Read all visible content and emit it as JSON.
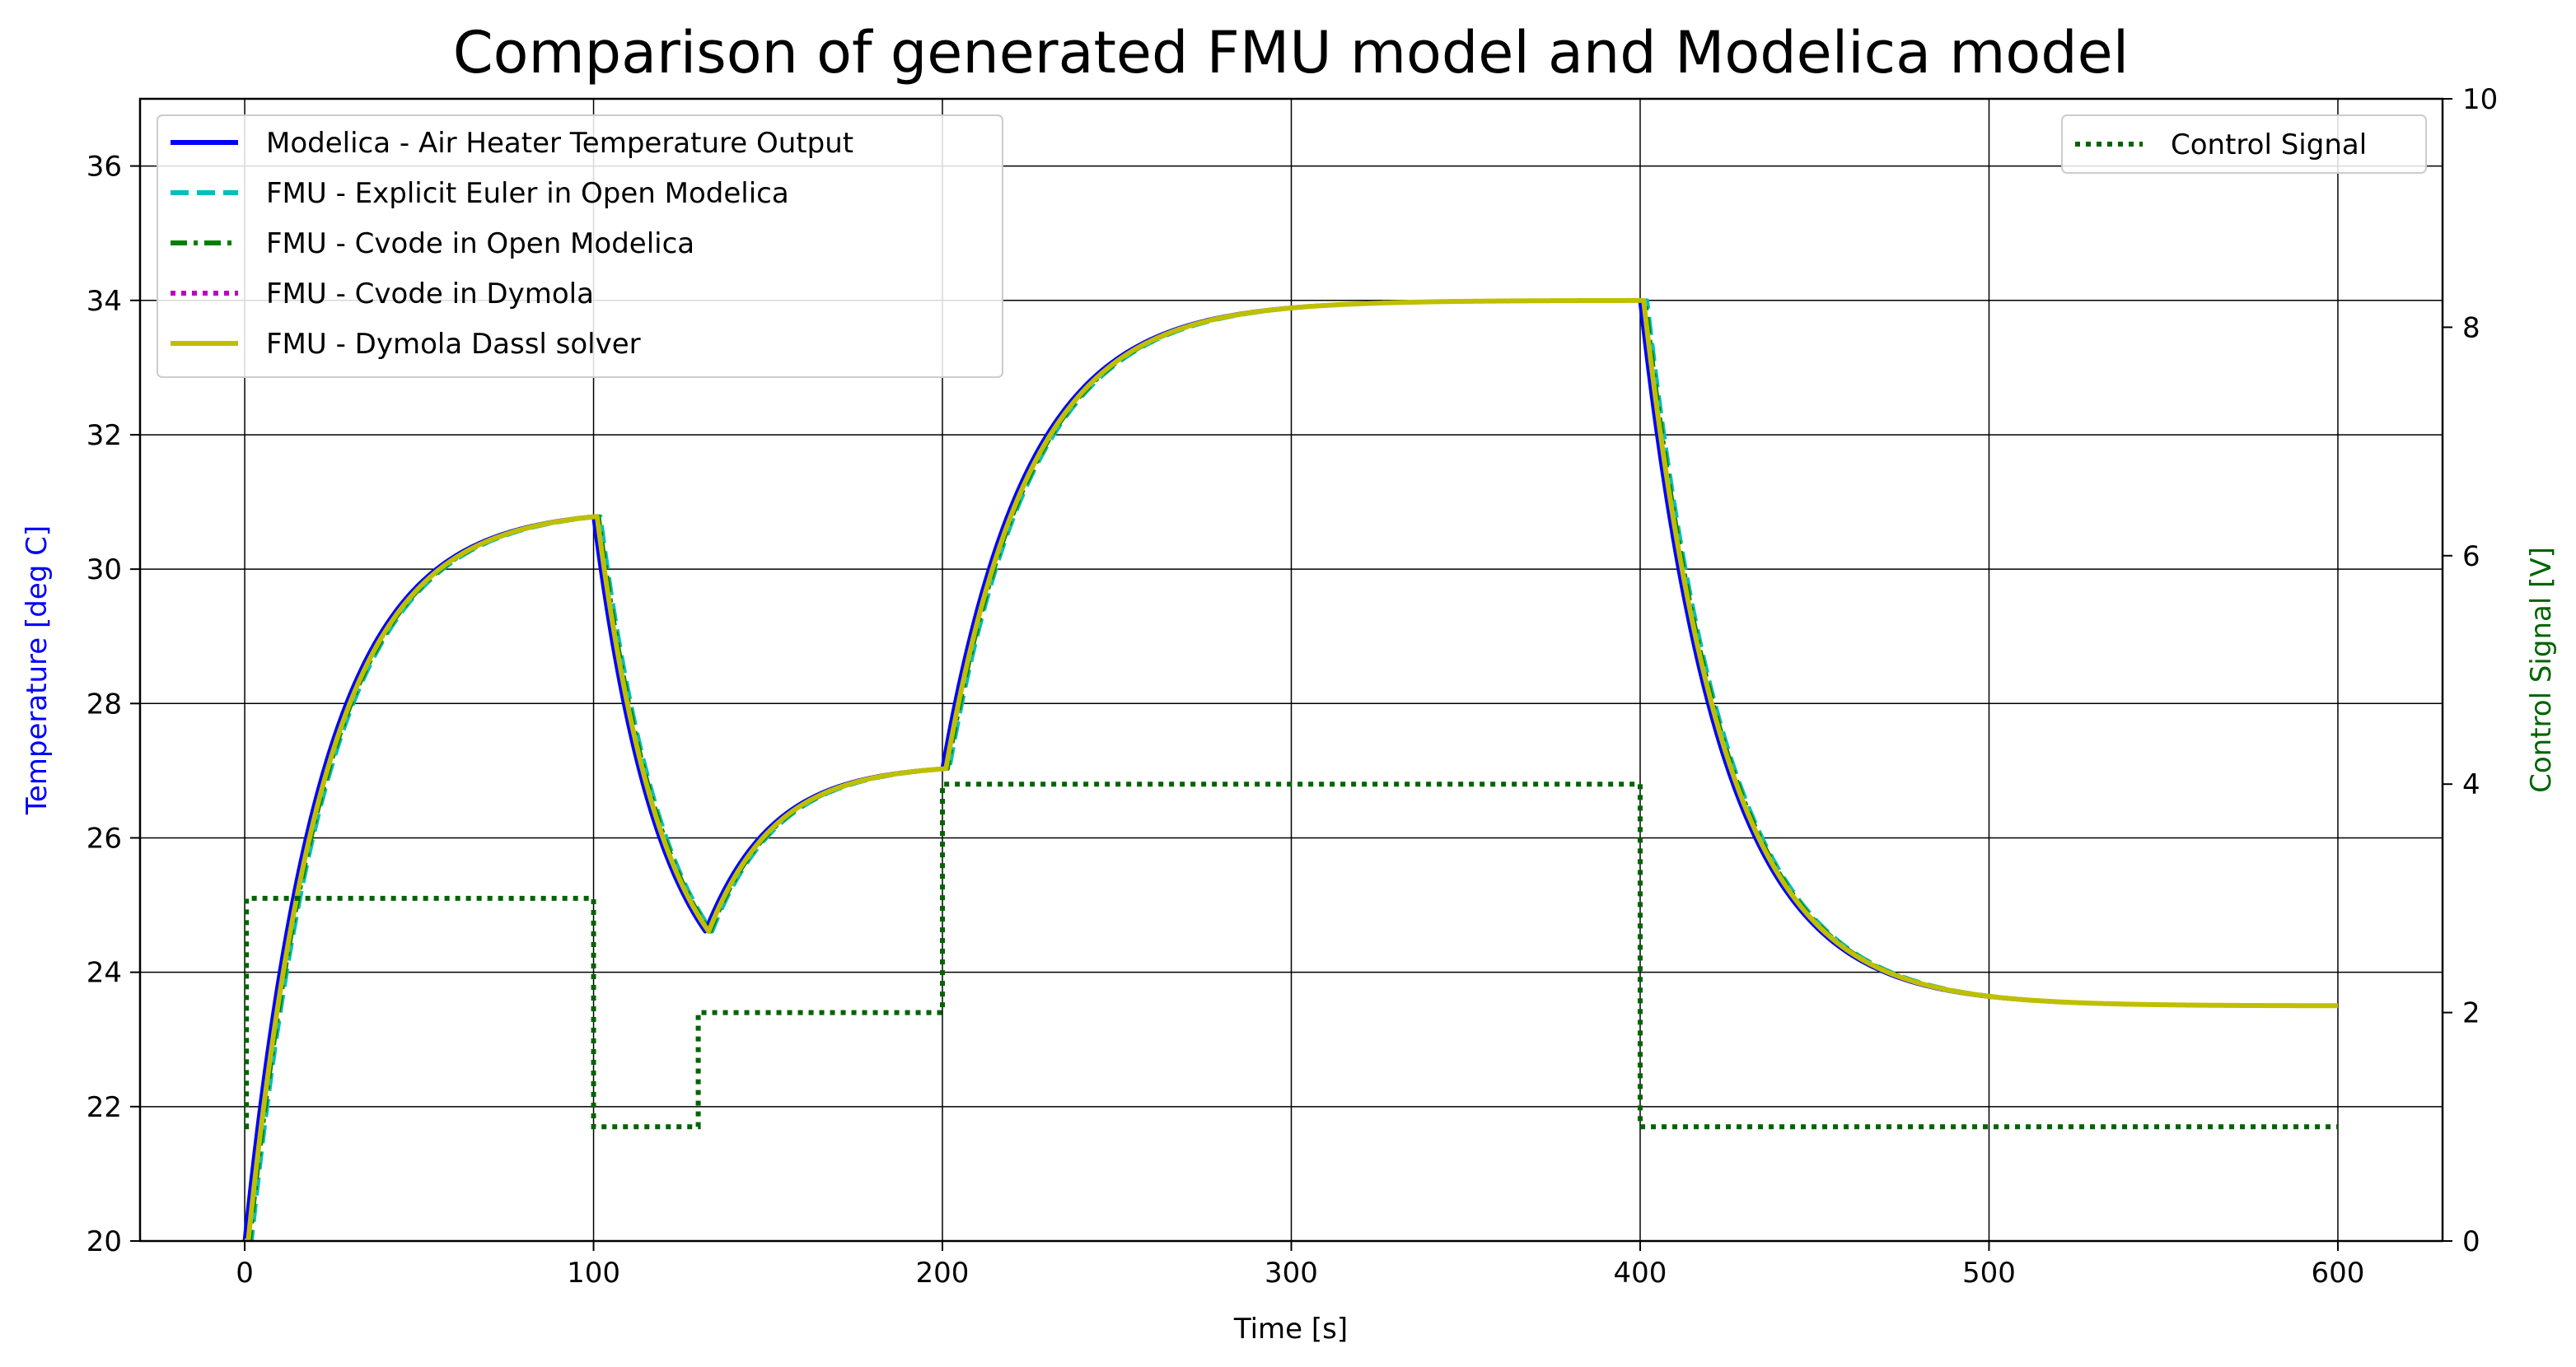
{
  "chart_data": {
    "type": "line",
    "title": "Comparison of generated FMU model and Modelica model",
    "xlabel": "Time [s]",
    "ylabel": "Temperature [deg C]",
    "ylabel_color": "#0000ff",
    "y2label": "Control Signal [V]",
    "y2label_color": "#006400",
    "xlim": [
      -30,
      630
    ],
    "ylim": [
      20,
      37
    ],
    "y2lim": [
      0,
      10
    ],
    "xticks": [
      0,
      100,
      200,
      300,
      400,
      500,
      600
    ],
    "yticks": [
      20,
      22,
      24,
      26,
      28,
      30,
      32,
      34,
      36
    ],
    "y2ticks": [
      0,
      2,
      4,
      6,
      8,
      10
    ],
    "grid": true,
    "legend_primary": "top-left",
    "legend_secondary": "top-right",
    "temperature_model": {
      "start": 20,
      "segments": [
        {
          "t0": 0,
          "t1": 100,
          "target": 30.9,
          "tau": 22
        },
        {
          "t0": 100,
          "t1": 132,
          "target": 23.2,
          "tau": 19
        },
        {
          "t0": 132,
          "t1": 200,
          "target": 27.1,
          "tau": 19
        },
        {
          "t0": 200,
          "t1": 400,
          "target": 34.0,
          "tau": 24
        },
        {
          "t0": 400,
          "t1": 600,
          "target": 23.5,
          "tau": 23
        }
      ]
    },
    "series": [
      {
        "name": "Modelica - Air Heater Temperature Output",
        "color": "#0000ff",
        "style": "solid",
        "axis": "left",
        "delay": 0
      },
      {
        "name": "FMU - Explicit Euler in Open Modelica",
        "color": "#00bfbf",
        "style": "dashed",
        "axis": "left",
        "delay": 2
      },
      {
        "name": "FMU - Cvode in Open Modelica",
        "color": "#008000",
        "style": "dashdot",
        "axis": "left",
        "delay": 1.5
      },
      {
        "name": "FMU - Cvode in Dymola",
        "color": "#bf00bf",
        "style": "dotted",
        "axis": "left",
        "delay": 1
      },
      {
        "name": "FMU - Dymola Dassl solver",
        "color": "#bfbf00",
        "style": "solid",
        "axis": "left",
        "delay": 1
      }
    ],
    "control_signal": {
      "name": "Control Signal",
      "color": "#006400",
      "style": "dotted",
      "axis": "right",
      "steps": [
        {
          "t0": 0,
          "t1": 0.5,
          "v": 1
        },
        {
          "t0": 0.5,
          "t1": 100,
          "v": 3
        },
        {
          "t0": 100,
          "t1": 130,
          "v": 1
        },
        {
          "t0": 130,
          "t1": 200,
          "v": 2
        },
        {
          "t0": 200,
          "t1": 400,
          "v": 4
        },
        {
          "t0": 400,
          "t1": 600,
          "v": 1
        }
      ]
    }
  }
}
